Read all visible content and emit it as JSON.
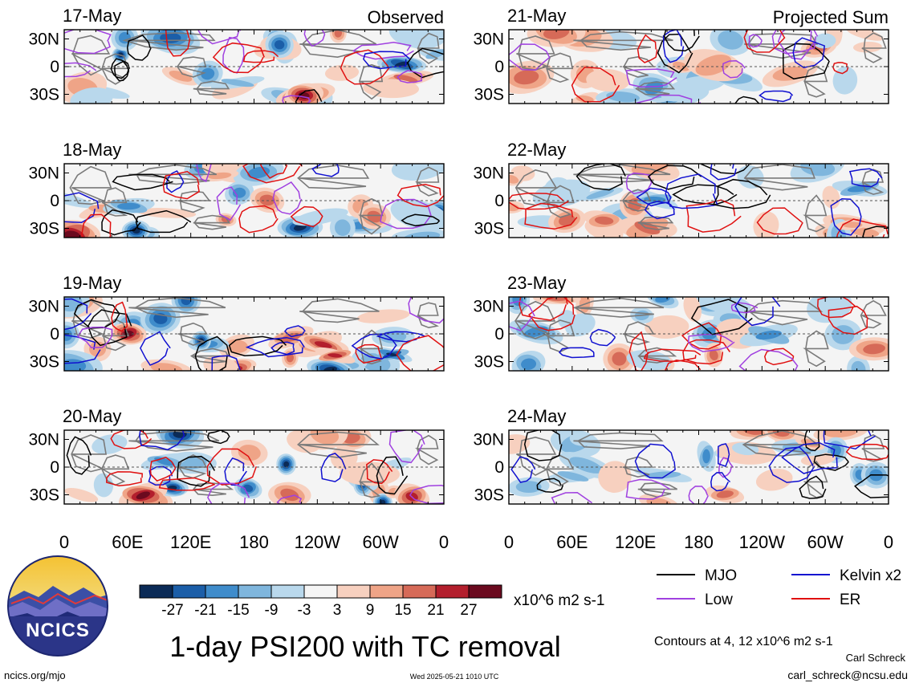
{
  "chart_data": {
    "type": "heatmap",
    "title": "1-day PSI200 with TC removal",
    "colorbar": {
      "unit_label": "x10^6 m2 s-1",
      "tick_labels": [
        "-27",
        "-21",
        "-15",
        "-9",
        "-3",
        "3",
        "9",
        "15",
        "21",
        "27"
      ],
      "colors": [
        "#0b2b57",
        "#1b5ea8",
        "#3f8ccb",
        "#7fb6dd",
        "#b9d8ec",
        "#f5f5f5",
        "#f7d0bf",
        "#efa487",
        "#d66a58",
        "#b31f2d",
        "#6b0a1f"
      ]
    },
    "column_labels": {
      "left": "Observed",
      "right": "Projected Sum"
    },
    "x_tick_labels": [
      "0",
      "60E",
      "120E",
      "180",
      "120W",
      "60W",
      "0"
    ],
    "y_tick_labels": [
      "30N",
      "0",
      "30S"
    ],
    "x_range_deg_east": [
      0,
      360
    ],
    "y_range_deg": [
      -40,
      40
    ],
    "grid": "dashed line at equator",
    "panels": [
      {
        "date": "17-May",
        "column": "left"
      },
      {
        "date": "18-May",
        "column": "left"
      },
      {
        "date": "19-May",
        "column": "left"
      },
      {
        "date": "20-May",
        "column": "left"
      },
      {
        "date": "21-May",
        "column": "right"
      },
      {
        "date": "22-May",
        "column": "right"
      },
      {
        "date": "23-May",
        "column": "right"
      },
      {
        "date": "24-May",
        "column": "right"
      }
    ],
    "legend": {
      "placement": "bottom-right",
      "entries": [
        {
          "name": "MJO",
          "color": "#000000"
        },
        {
          "name": "Kelvin x2",
          "color": "#1010d0"
        },
        {
          "name": "Low",
          "color": "#a040e0"
        },
        {
          "name": "ER",
          "color": "#e01010"
        }
      ]
    },
    "contour_note": "Contours at 4, 12 x10^6 m2 s-1"
  },
  "logo_text": "NCICS",
  "footer": {
    "site": "ncics.org/mjo",
    "timestamp": "Wed 2025-05-21 1010 UTC",
    "author": "Carl Schreck",
    "email": "carl_schreck@ncsu.edu"
  }
}
